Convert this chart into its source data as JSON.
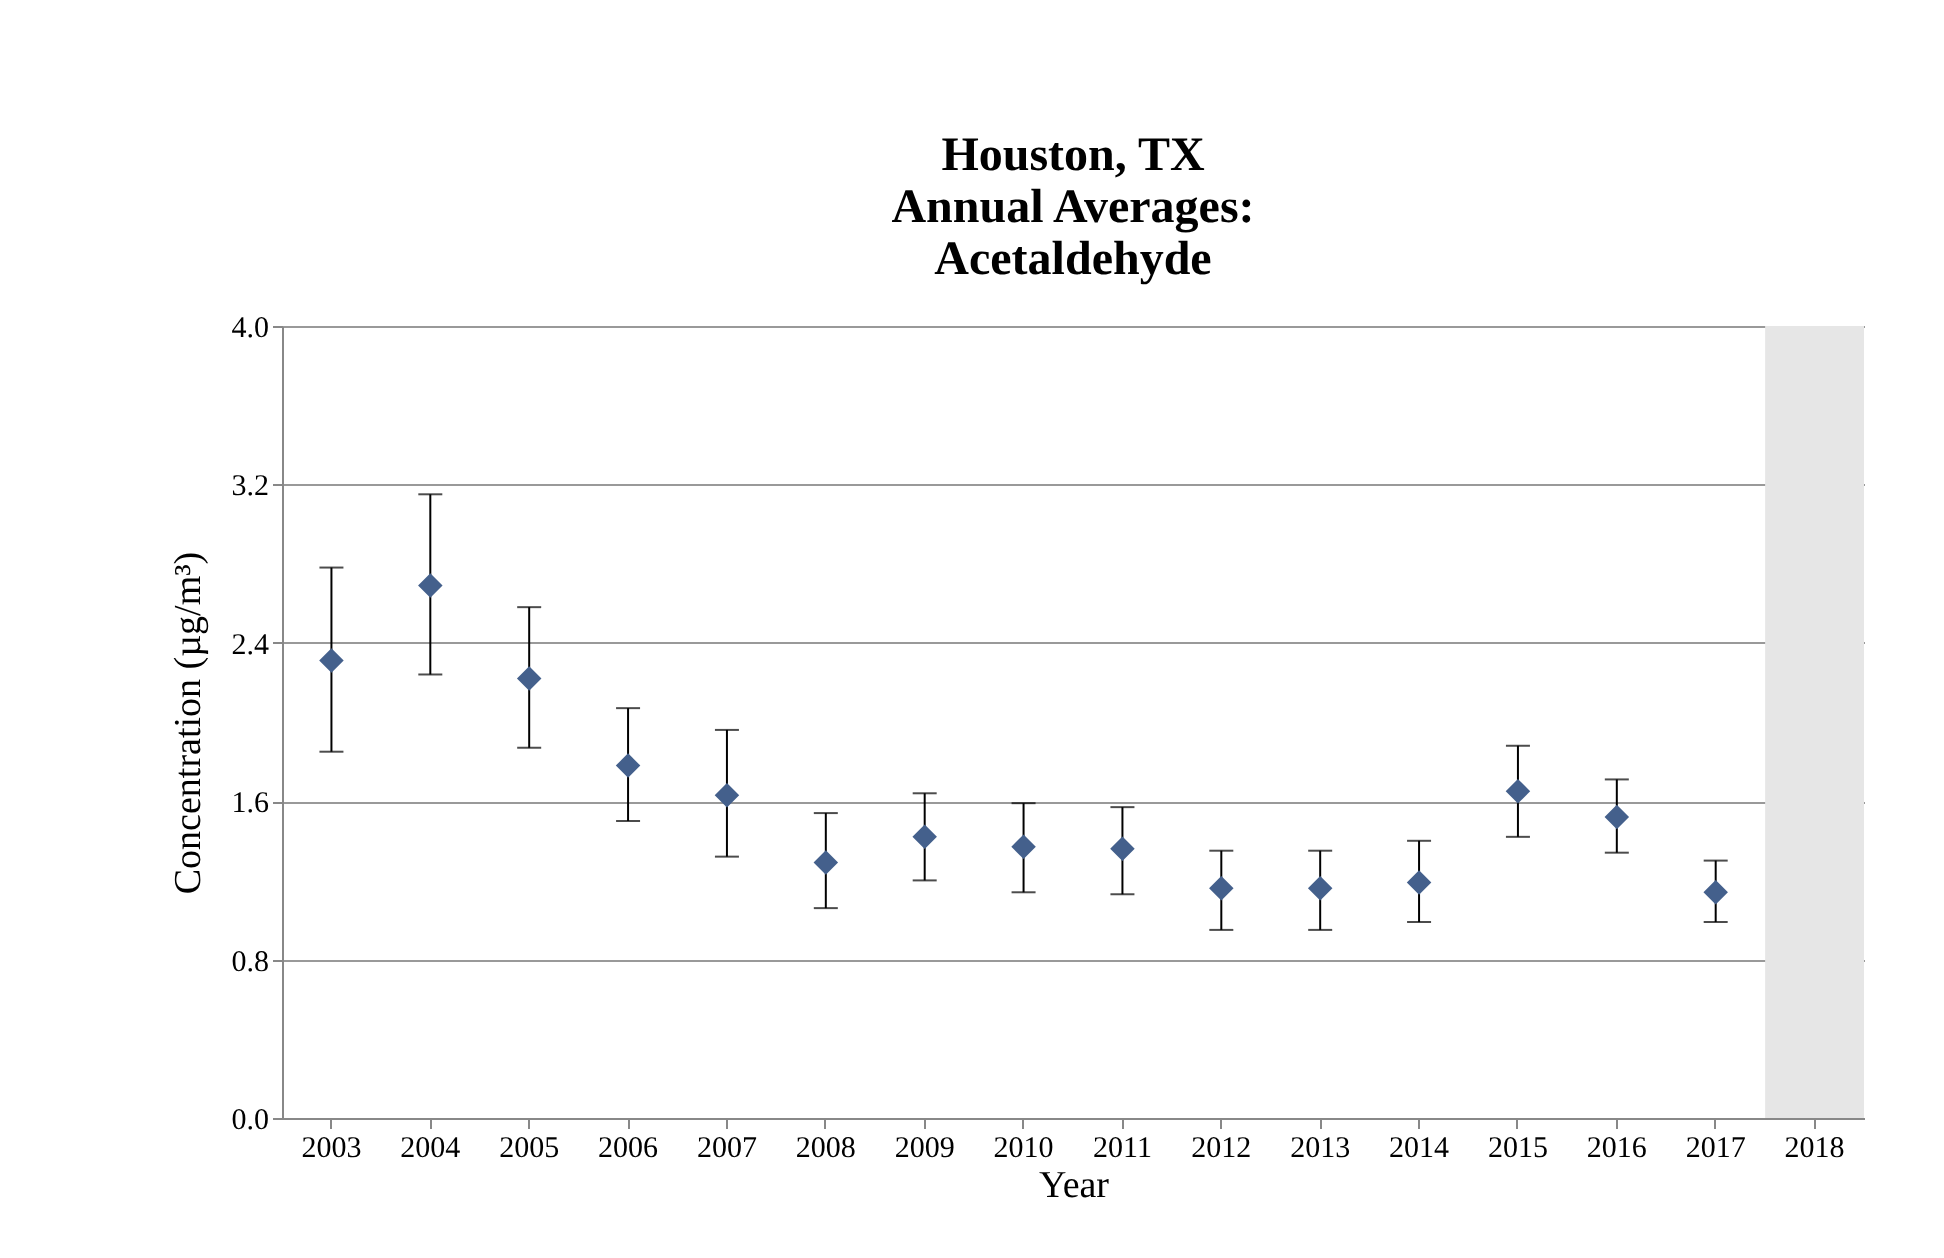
{
  "chart_data": {
    "type": "scatter",
    "title": "Houston, TX\nAnnual Averages:\nAcetaldehyde",
    "xlabel": "Year",
    "ylabel": "Concentration (µg/m³)",
    "categories": [
      "2003",
      "2004",
      "2005",
      "2006",
      "2007",
      "2008",
      "2009",
      "2010",
      "2011",
      "2012",
      "2013",
      "2014",
      "2015",
      "2016",
      "2017",
      "2018"
    ],
    "series": [
      {
        "color": "#44608c",
        "values": [
          2.31,
          2.69,
          2.22,
          1.78,
          1.63,
          1.29,
          1.42,
          1.37,
          1.36,
          1.16,
          1.16,
          1.19,
          1.65,
          1.52,
          1.14,
          null
        ],
        "errors": [
          [
            1.85,
            2.78
          ],
          [
            2.24,
            3.15
          ],
          [
            1.87,
            2.58
          ],
          [
            1.5,
            2.07
          ],
          [
            1.32,
            1.96
          ],
          [
            1.06,
            1.54
          ],
          [
            1.2,
            1.64
          ],
          [
            1.14,
            1.59
          ],
          [
            1.13,
            1.57
          ],
          [
            0.95,
            1.35
          ],
          [
            0.95,
            1.35
          ],
          [
            0.99,
            1.4
          ],
          [
            1.42,
            1.88
          ],
          [
            1.34,
            1.71
          ],
          [
            0.99,
            1.3
          ],
          null
        ]
      }
    ],
    "bands": [
      {
        "axis": "x",
        "from": "2018",
        "to": "2018",
        "color": "#e6e6e6"
      }
    ],
    "ylim": [
      0,
      4
    ],
    "yticks": [
      {
        "value": 0,
        "label": "0.0"
      },
      {
        "value": 0.8,
        "label": "0.8"
      },
      {
        "value": 1.6,
        "label": "1.6"
      },
      {
        "value": 2.4,
        "label": "2.4"
      },
      {
        "value": 3.2,
        "label": "3.2"
      },
      {
        "value": 4,
        "label": "4.0"
      }
    ],
    "grid": "y",
    "marker": "diamond"
  }
}
